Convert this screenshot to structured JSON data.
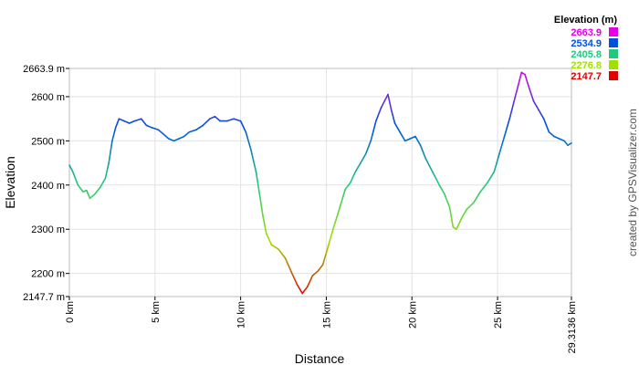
{
  "chart_data": {
    "type": "line",
    "xlabel": "Distance",
    "ylabel": "Elevation",
    "xlim": [
      0,
      29.3136
    ],
    "ylim": [
      2147.7,
      2663.9
    ],
    "x_ticks": [
      {
        "value": 0,
        "label": "0 km"
      },
      {
        "value": 5,
        "label": "5 km"
      },
      {
        "value": 10,
        "label": "10 km"
      },
      {
        "value": 15,
        "label": "15 km"
      },
      {
        "value": 20,
        "label": "20 km"
      },
      {
        "value": 25,
        "label": "25 km"
      },
      {
        "value": 29.3136,
        "label": "29.3136 km"
      }
    ],
    "y_ticks": [
      {
        "value": 2147.7,
        "label": "2147.7 m"
      },
      {
        "value": 2200,
        "label": "2200 m"
      },
      {
        "value": 2300,
        "label": "2300 m"
      },
      {
        "value": 2400,
        "label": "2400 m"
      },
      {
        "value": 2500,
        "label": "2500 m"
      },
      {
        "value": 2600,
        "label": "2600 m"
      },
      {
        "value": 2663.9,
        "label": "2663.9 m"
      }
    ],
    "grid": true,
    "legend": {
      "title": "Elevation (m)",
      "placement": "top-right",
      "entries": [
        {
          "label": "2663.9",
          "color": "#e600e6"
        },
        {
          "label": "2534.9",
          "color": "#0050e0"
        },
        {
          "label": "2405.8",
          "color": "#20c880"
        },
        {
          "label": "2276.8",
          "color": "#a0e000"
        },
        {
          "label": "2147.7",
          "color": "#e00000"
        }
      ]
    },
    "series": [
      {
        "x": [
          0,
          0.2,
          0.5,
          0.8,
          1.0,
          1.2,
          1.5,
          1.8,
          2.1,
          2.3,
          2.5,
          2.7,
          2.9,
          3.2,
          3.5,
          3.8,
          4.2,
          4.5,
          4.8,
          5.2,
          5.5,
          5.8,
          6.1,
          6.4,
          6.7,
          7.0,
          7.4,
          7.8,
          8.2,
          8.5,
          8.8,
          9.2,
          9.6,
          10.0,
          10.3,
          10.6,
          10.9,
          11.1,
          11.3,
          11.5,
          11.8,
          12.2,
          12.6,
          13.0,
          13.3,
          13.6,
          13.9,
          14.2,
          14.5,
          14.8,
          15.1,
          15.4,
          15.8,
          16.1,
          16.4,
          16.7,
          17.0,
          17.3,
          17.6,
          17.9,
          18.2,
          18.4,
          18.6,
          18.8,
          19.0,
          19.3,
          19.6,
          19.9,
          20.2,
          20.5,
          20.8,
          21.2,
          21.6,
          21.9,
          22.2,
          22.4,
          22.6,
          22.9,
          23.2,
          23.6,
          24.0,
          24.4,
          24.8,
          25.1,
          25.4,
          25.7,
          26.0,
          26.2,
          26.4,
          26.6,
          26.8,
          27.1,
          27.4,
          27.7,
          28.0,
          28.3,
          28.6,
          28.9,
          29.1,
          29.3136
        ],
        "y": [
          2445,
          2430,
          2400,
          2385,
          2388,
          2370,
          2380,
          2395,
          2415,
          2450,
          2500,
          2530,
          2550,
          2545,
          2540,
          2545,
          2550,
          2535,
          2530,
          2525,
          2515,
          2505,
          2500,
          2505,
          2510,
          2520,
          2525,
          2535,
          2550,
          2555,
          2545,
          2545,
          2550,
          2545,
          2520,
          2480,
          2430,
          2380,
          2330,
          2290,
          2265,
          2255,
          2235,
          2200,
          2175,
          2155,
          2170,
          2195,
          2205,
          2220,
          2260,
          2300,
          2350,
          2390,
          2405,
          2430,
          2450,
          2470,
          2500,
          2545,
          2575,
          2590,
          2605,
          2570,
          2540,
          2520,
          2500,
          2505,
          2510,
          2490,
          2460,
          2430,
          2400,
          2380,
          2350,
          2305,
          2300,
          2325,
          2345,
          2360,
          2385,
          2405,
          2430,
          2470,
          2510,
          2550,
          2595,
          2625,
          2655,
          2650,
          2625,
          2590,
          2570,
          2550,
          2520,
          2510,
          2505,
          2500,
          2490,
          2495
        ]
      }
    ]
  },
  "credit_text": "created by GPSVisualizer.com"
}
